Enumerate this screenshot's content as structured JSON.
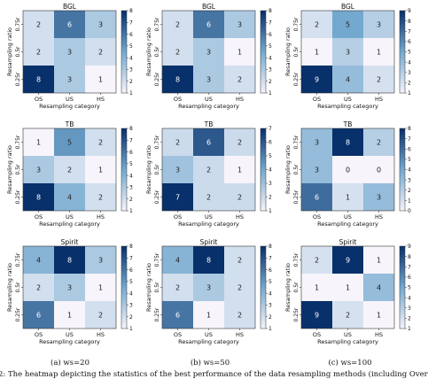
{
  "chart_data": [
    {
      "type": "heatmap",
      "title": "BGL",
      "xlabel": "Resampling category",
      "ylabel": "Resampling ratio",
      "x": [
        "OS",
        "US",
        "HS"
      ],
      "y": [
        "0.75r",
        "0.5r",
        "0.25r"
      ],
      "values": [
        [
          2,
          6,
          3
        ],
        [
          2,
          3,
          2
        ],
        [
          8,
          3,
          1
        ]
      ],
      "colorbar_ticks": [
        "1",
        "2",
        "3",
        "4",
        "5",
        "6",
        "7",
        "8"
      ],
      "vmin": 1,
      "vmax": 8
    },
    {
      "type": "heatmap",
      "title": "BGL",
      "xlabel": "Resampling category",
      "ylabel": "Resampling ratio",
      "x": [
        "OS",
        "US",
        "HS"
      ],
      "y": [
        "0.75r",
        "0.5r",
        "0.25r"
      ],
      "values": [
        [
          2,
          6,
          3
        ],
        [
          2,
          3,
          1
        ],
        [
          8,
          3,
          2
        ]
      ],
      "colorbar_ticks": [
        "1",
        "2",
        "3",
        "4",
        "5",
        "6",
        "7",
        "8"
      ],
      "vmin": 1,
      "vmax": 8
    },
    {
      "type": "heatmap",
      "title": "BGL",
      "xlabel": "Resampling category",
      "ylabel": "Resampling ratio",
      "x": [
        "OS",
        "US",
        "HS"
      ],
      "y": [
        "0.75r",
        "0.5r",
        "0.25r"
      ],
      "values": [
        [
          2,
          5,
          3
        ],
        [
          1,
          3,
          1
        ],
        [
          9,
          4,
          2
        ]
      ],
      "colorbar_ticks": [
        "1",
        "2",
        "3",
        "4",
        "5",
        "6",
        "7",
        "8",
        "9"
      ],
      "vmin": 1,
      "vmax": 9
    },
    {
      "type": "heatmap",
      "title": "TB",
      "xlabel": "Resampling category",
      "ylabel": "Resampling ratio",
      "x": [
        "OS",
        "US",
        "HS"
      ],
      "y": [
        "0.75r",
        "0.5r",
        "0.25r"
      ],
      "values": [
        [
          1,
          5,
          2
        ],
        [
          3,
          2,
          1
        ],
        [
          8,
          4,
          2
        ]
      ],
      "colorbar_ticks": [
        "1",
        "2",
        "3",
        "4",
        "5",
        "6",
        "7",
        "8"
      ],
      "vmin": 1,
      "vmax": 8
    },
    {
      "type": "heatmap",
      "title": "TB",
      "xlabel": "Resampling category",
      "ylabel": "Resampling ratio",
      "x": [
        "OS",
        "US",
        "HS"
      ],
      "y": [
        "0.75r",
        "0.5r",
        "0.25r"
      ],
      "values": [
        [
          2,
          6,
          2
        ],
        [
          3,
          2,
          1
        ],
        [
          7,
          2,
          2
        ]
      ],
      "colorbar_ticks": [
        "1",
        "2",
        "3",
        "4",
        "5",
        "6",
        "7"
      ],
      "vmin": 1,
      "vmax": 7
    },
    {
      "type": "heatmap",
      "title": "TB",
      "xlabel": "Resampling category",
      "ylabel": "Resampling ratio",
      "x": [
        "OS",
        "US",
        "HS"
      ],
      "y": [
        "0.75r",
        "0.5r",
        "0.25r"
      ],
      "values": [
        [
          3,
          8,
          2
        ],
        [
          3,
          0,
          0
        ],
        [
          6,
          1,
          3
        ]
      ],
      "colorbar_ticks": [
        "0",
        "1",
        "2",
        "3",
        "4",
        "5",
        "6",
        "7",
        "8"
      ],
      "vmin": 0,
      "vmax": 8
    },
    {
      "type": "heatmap",
      "title": "Spirit",
      "xlabel": "Resampling category",
      "ylabel": "Resampling ratio",
      "x": [
        "OS",
        "US",
        "HS"
      ],
      "y": [
        "0.75r",
        "0.5r",
        "0.25r"
      ],
      "values": [
        [
          4,
          8,
          3
        ],
        [
          2,
          3,
          1
        ],
        [
          6,
          1,
          2
        ]
      ],
      "colorbar_ticks": [
        "1",
        "2",
        "3",
        "4",
        "5",
        "6",
        "7",
        "8"
      ],
      "vmin": 1,
      "vmax": 8
    },
    {
      "type": "heatmap",
      "title": "Spirit",
      "xlabel": "Resampling category",
      "ylabel": "Resampling ratio",
      "x": [
        "OS",
        "US",
        "HS"
      ],
      "y": [
        "0.75r",
        "0.5r",
        "0.25r"
      ],
      "values": [
        [
          4,
          8,
          2
        ],
        [
          2,
          3,
          2
        ],
        [
          6,
          1,
          2
        ]
      ],
      "colorbar_ticks": [
        "1",
        "2",
        "3",
        "4",
        "5",
        "6",
        "7",
        "8"
      ],
      "vmin": 1,
      "vmax": 8
    },
    {
      "type": "heatmap",
      "title": "Spirit",
      "xlabel": "Resampling category",
      "ylabel": "Resampling ratio",
      "x": [
        "OS",
        "US",
        "HS"
      ],
      "y": [
        "0.75r",
        "0.5r",
        "0.25r"
      ],
      "values": [
        [
          2,
          9,
          1
        ],
        [
          1,
          1,
          4
        ],
        [
          9,
          2,
          1
        ]
      ],
      "colorbar_ticks": [
        "1",
        "2",
        "3",
        "4",
        "5",
        "6",
        "7",
        "8",
        "9"
      ],
      "vmin": 1,
      "vmax": 9
    }
  ],
  "captions": [
    "(a) ws=20",
    "(b) ws=50",
    "(c) ws=100"
  ],
  "figure_caption": "2: The heatmap depicting the statistics of the best performance of the data resampling methods (including Over",
  "colors": {
    "low": "#f7f4fb",
    "mid": "#74a9cf",
    "high": "#08306b",
    "edge": "#222222"
  }
}
